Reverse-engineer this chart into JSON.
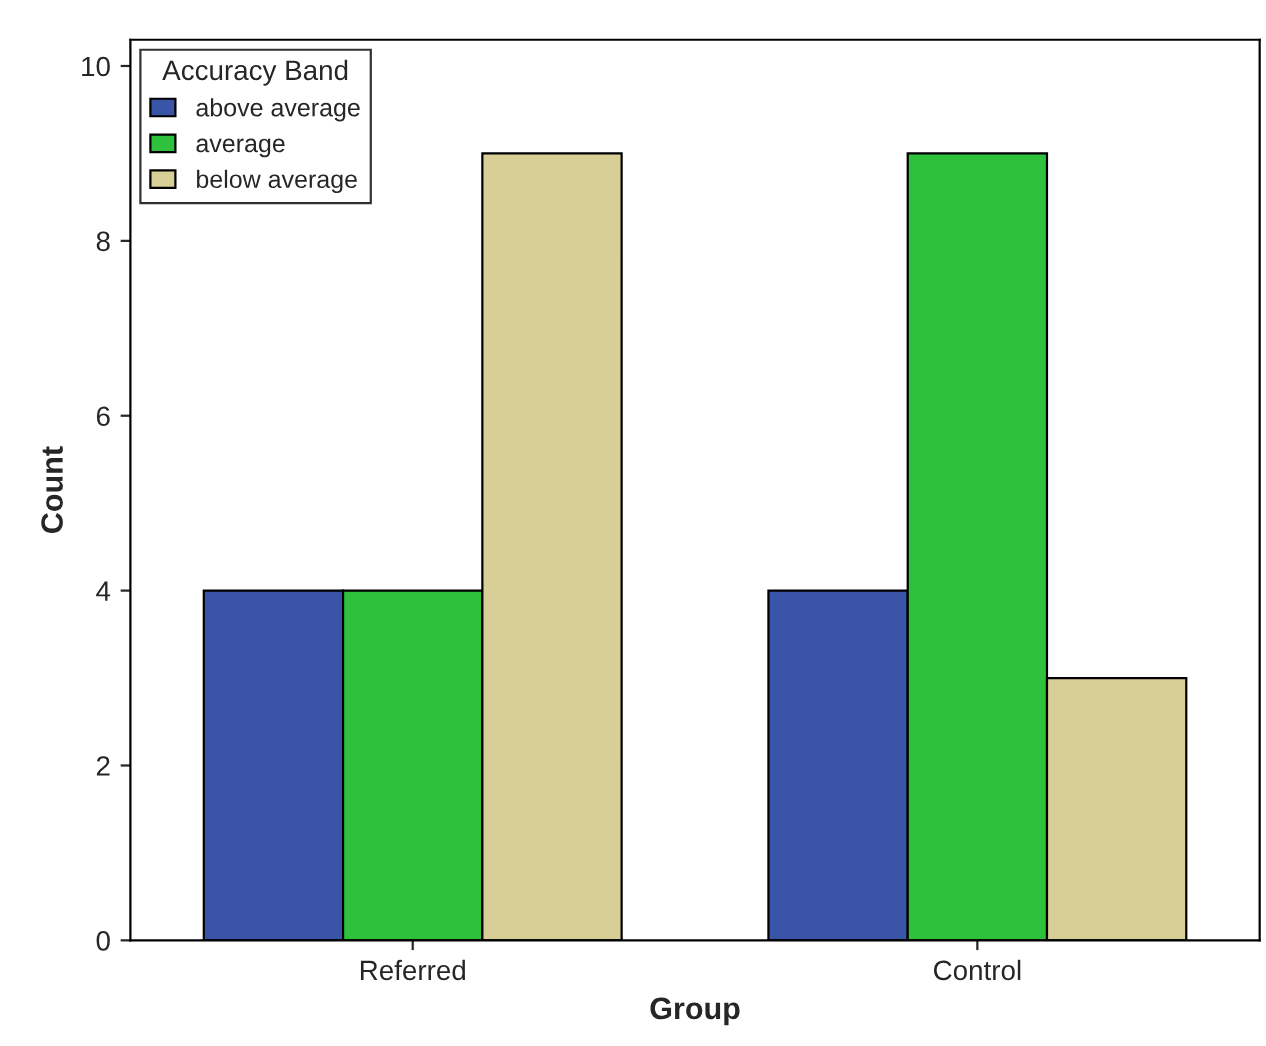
{
  "chart_data": {
    "type": "bar",
    "xlabel": "Group",
    "ylabel": "Count",
    "legend_title": "Accuracy Band",
    "categories": [
      "Referred",
      "Control"
    ],
    "series": [
      {
        "name": "above average",
        "color": "#3a55a8",
        "values": [
          4,
          4
        ]
      },
      {
        "name": "average",
        "color": "#2ec23c",
        "values": [
          4,
          9
        ]
      },
      {
        "name": "below average",
        "color": "#d8cf96",
        "values": [
          9,
          3
        ]
      }
    ],
    "ylim": [
      0,
      10.3
    ],
    "yticks": [
      0,
      2,
      4,
      6,
      8,
      10
    ],
    "grid": false,
    "legend": "top left"
  }
}
